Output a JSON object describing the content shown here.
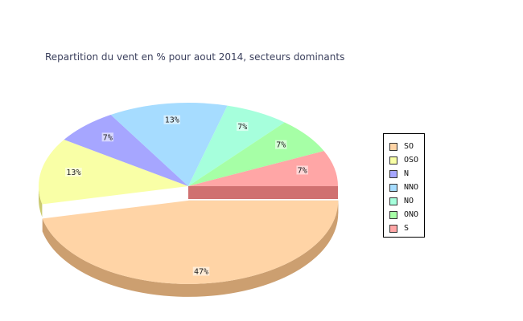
{
  "chart_data": {
    "type": "pie",
    "title": "Repartition du vent en % pour aout 2014, secteurs dominants",
    "slices": [
      {
        "name": "SO",
        "value": 47,
        "label": "47%",
        "color": "#ffd4a6",
        "side": "#cc9f70"
      },
      {
        "name": "OSO",
        "value": 13,
        "label": "13%",
        "color": "#f9ffa6",
        "side": "#caca70"
      },
      {
        "name": "N",
        "value": 7,
        "label": "7%",
        "color": "#a6a6ff",
        "side": "#7070c8"
      },
      {
        "name": "NNO",
        "value": 13,
        "label": "13%",
        "color": "#a6dcff",
        "side": "#70a6c8"
      },
      {
        "name": "NO",
        "value": 7,
        "label": "7%",
        "color": "#a6ffdc",
        "side": "#70c8a6"
      },
      {
        "name": "ONO",
        "value": 7,
        "label": "7%",
        "color": "#a6ffa6",
        "side": "#70c870"
      },
      {
        "name": "S",
        "value": 7,
        "label": "7%",
        "color": "#ffa6a6",
        "side": "#d07070"
      }
    ],
    "legend_position": "right",
    "style": "3d-exploded"
  }
}
